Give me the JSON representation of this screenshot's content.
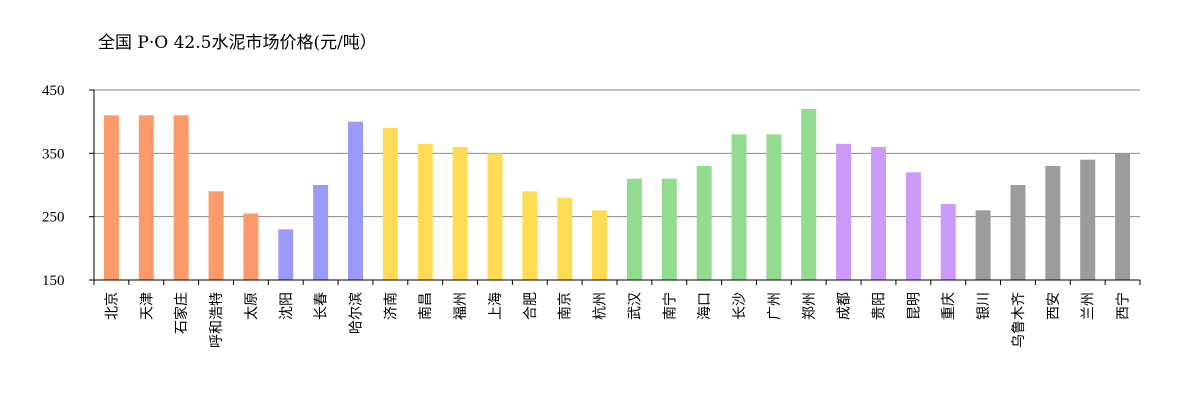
{
  "chart_data": {
    "type": "bar",
    "title": "全国 P·O 42.5水泥市场价格(元/吨）",
    "xlabel": "",
    "ylabel": "",
    "ylim": [
      150,
      450
    ],
    "yticks": [
      150,
      250,
      350,
      450
    ],
    "grid": true,
    "categories": [
      "北京",
      "天津",
      "石家庄",
      "呼和浩特",
      "太原",
      "沈阳",
      "长春",
      "哈尔滨",
      "济南",
      "南昌",
      "福州",
      "上海",
      "合肥",
      "南京",
      "杭州",
      "武汉",
      "南宁",
      "海口",
      "长沙",
      "广州",
      "郑州",
      "成都",
      "贵阳",
      "昆明",
      "重庆",
      "银川",
      "乌鲁木齐",
      "西安",
      "兰州",
      "西宁"
    ],
    "values": [
      410,
      410,
      410,
      290,
      255,
      230,
      300,
      400,
      390,
      365,
      360,
      350,
      290,
      280,
      260,
      310,
      310,
      330,
      380,
      380,
      420,
      365,
      360,
      320,
      270,
      260,
      300,
      330,
      340,
      350
    ],
    "colors": [
      "#fd9a6a",
      "#fd9a6a",
      "#fd9a6a",
      "#fd9a6a",
      "#fd9a6a",
      "#9a9af8",
      "#9a9af8",
      "#9a9af8",
      "#fedd55",
      "#fedd55",
      "#fedd55",
      "#fedd55",
      "#fedd55",
      "#fedd55",
      "#fedd55",
      "#92dc8f",
      "#92dc8f",
      "#92dc8f",
      "#92dc8f",
      "#92dc8f",
      "#92dc8f",
      "#cc9af8",
      "#cc9af8",
      "#cc9af8",
      "#cc9af8",
      "#9c9c9c",
      "#9c9c9c",
      "#9c9c9c",
      "#9c9c9c",
      "#9c9c9c"
    ]
  }
}
